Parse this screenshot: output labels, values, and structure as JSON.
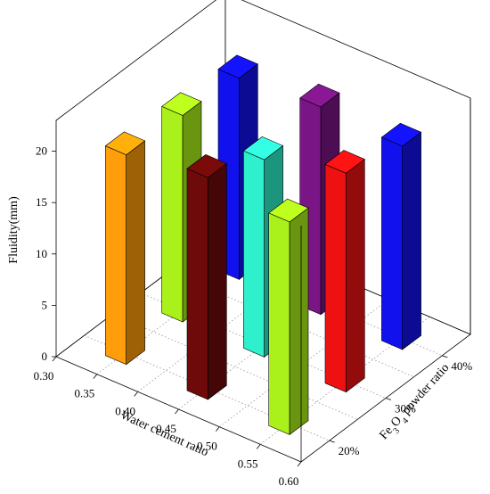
{
  "chart_data": {
    "type": "bar3d",
    "title": "",
    "zlabel": "Fluidity(mm)",
    "xlabel": "Water cement ratio",
    "ylabel_parts": [
      "Fe",
      "3",
      "O",
      "4",
      " powder ratio"
    ],
    "zticks": [
      "0",
      "5",
      "10",
      "15",
      "20"
    ],
    "xticks": [
      "0.30",
      "0.35",
      "0.40",
      "0.45",
      "0.50",
      "0.55",
      "0.60"
    ],
    "yticks": [
      "20%",
      "30%",
      "40%"
    ],
    "zlim": [
      0,
      23
    ],
    "bars": [
      {
        "x": 0.35,
        "y": "40%",
        "value": 19.6,
        "color": "#1111ee"
      },
      {
        "x": 0.45,
        "y": "40%",
        "value": 20.2,
        "color": "#7a1585"
      },
      {
        "x": 0.55,
        "y": "40%",
        "value": 19.8,
        "color": "#1111ee"
      },
      {
        "x": 0.35,
        "y": "30%",
        "value": 20.1,
        "color": "#aaf01a"
      },
      {
        "x": 0.45,
        "y": "30%",
        "value": 19.2,
        "color": "#2ef0cc"
      },
      {
        "x": 0.55,
        "y": "30%",
        "value": 21.3,
        "color": "#ee1111"
      },
      {
        "x": 0.35,
        "y": "20%",
        "value": 20.4,
        "color": "#ff9d0a"
      },
      {
        "x": 0.45,
        "y": "20%",
        "value": 21.6,
        "color": "#6e0a0a"
      },
      {
        "x": 0.55,
        "y": "20%",
        "value": 20.7,
        "color": "#aaf01a"
      }
    ]
  }
}
